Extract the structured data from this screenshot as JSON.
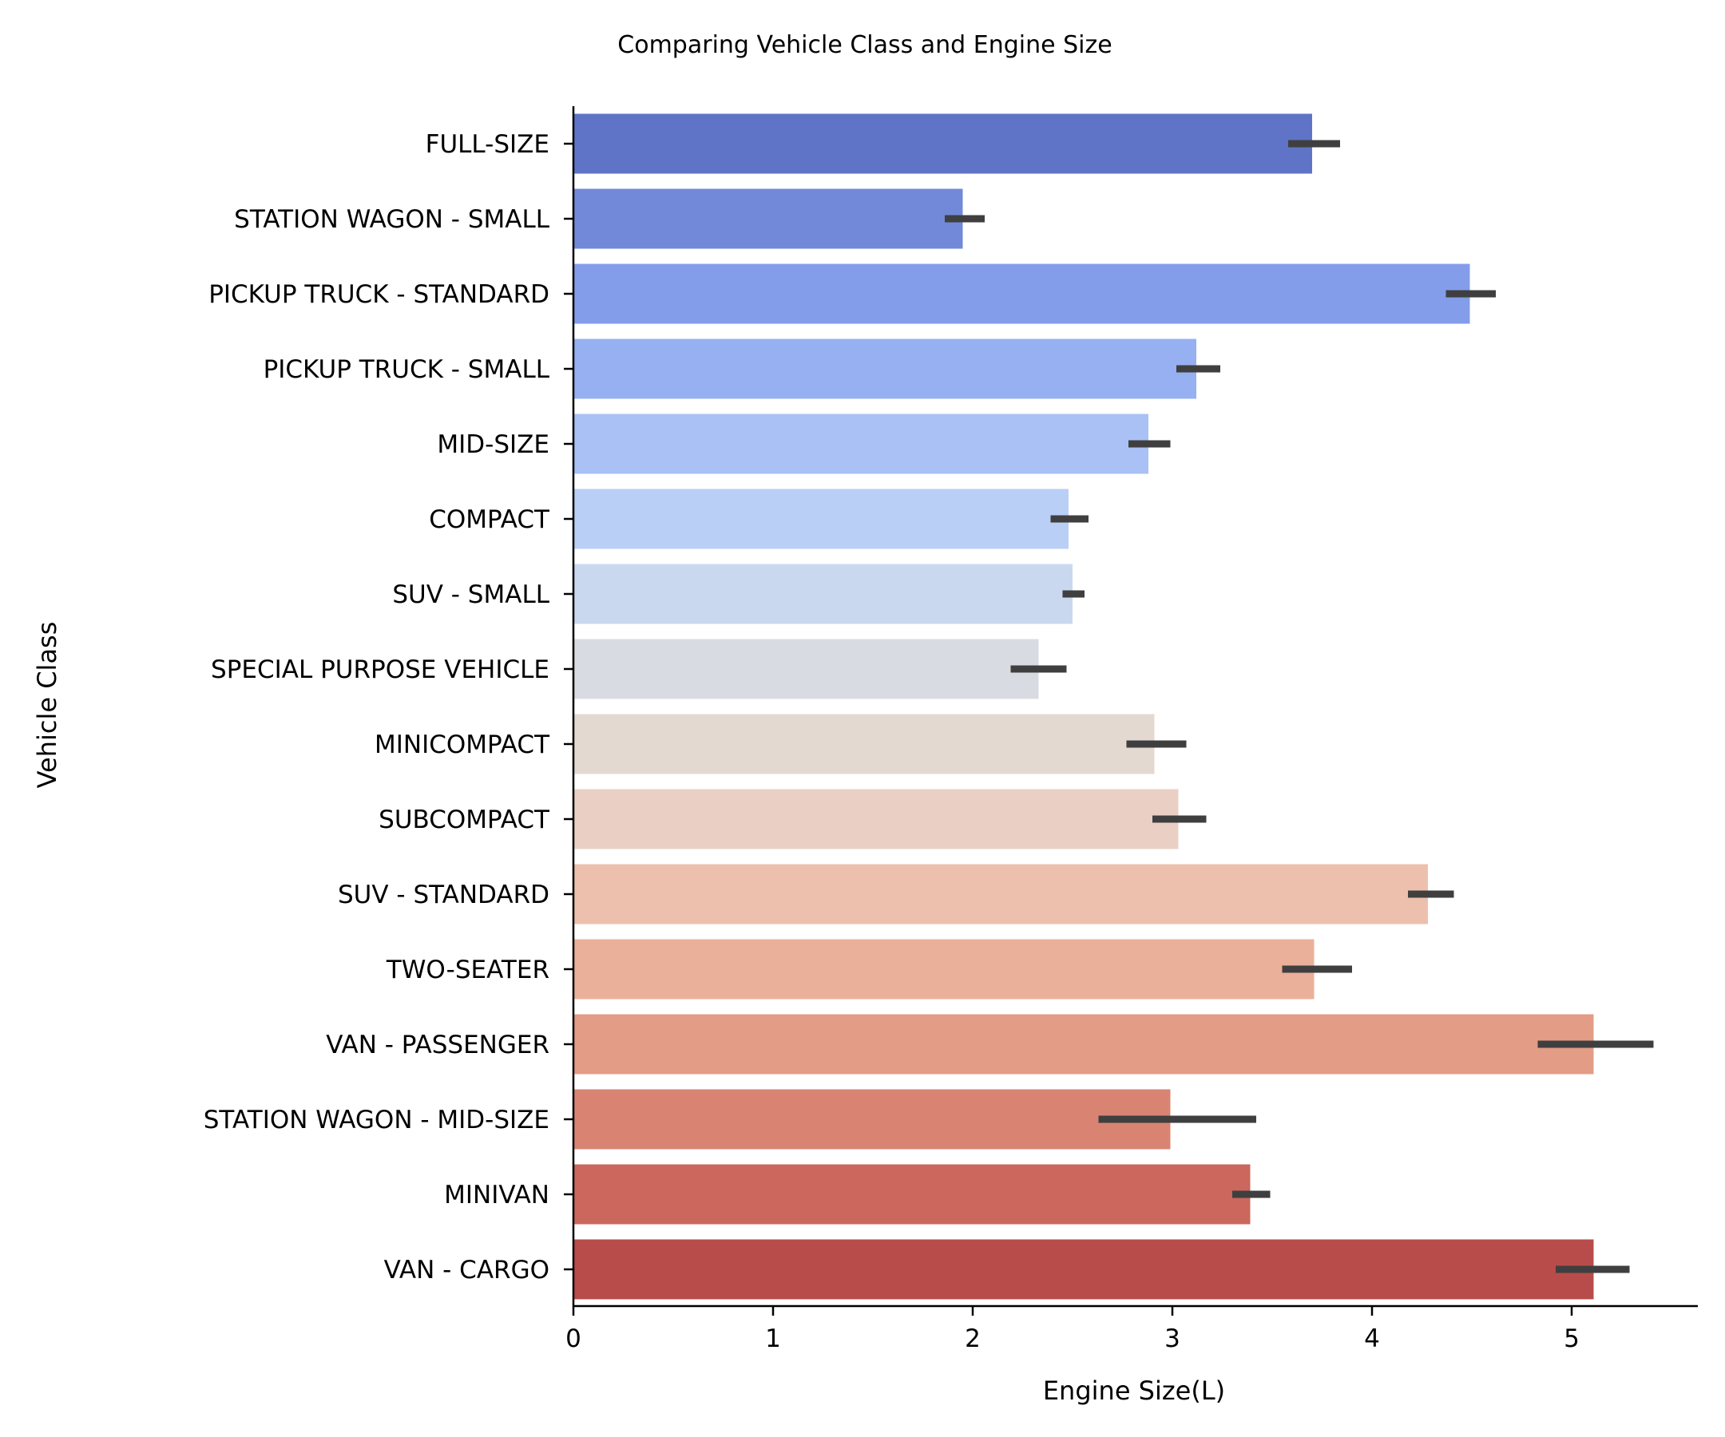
{
  "chart_data": {
    "type": "bar",
    "orientation": "horizontal",
    "title": "Comparing Vehicle Class and Engine Size",
    "xlabel": "Engine Size(L)",
    "ylabel": "Vehicle Class",
    "xlim": [
      0,
      5.65
    ],
    "xticks": [
      0,
      1,
      2,
      3,
      4,
      5
    ],
    "grid": false,
    "palette": "coolwarm",
    "categories": [
      "FULL-SIZE",
      "STATION WAGON - SMALL",
      "PICKUP TRUCK - STANDARD",
      "PICKUP TRUCK - SMALL",
      "MID-SIZE",
      "COMPACT",
      "SUV - SMALL",
      "SPECIAL PURPOSE VEHICLE",
      "MINICOMPACT",
      "SUBCOMPACT",
      "SUV - STANDARD",
      "TWO-SEATER",
      "VAN - PASSENGER",
      "STATION WAGON - MID-SIZE",
      "MINIVAN",
      "VAN - CARGO"
    ],
    "values": [
      3.7,
      1.95,
      4.49,
      3.12,
      2.88,
      2.48,
      2.5,
      2.33,
      2.91,
      3.03,
      4.28,
      3.71,
      5.11,
      2.99,
      3.39,
      5.11
    ],
    "ci": [
      [
        3.58,
        3.84
      ],
      [
        1.86,
        2.06
      ],
      [
        4.37,
        4.62
      ],
      [
        3.02,
        3.24
      ],
      [
        2.78,
        2.99
      ],
      [
        2.39,
        2.58
      ],
      [
        2.45,
        2.56
      ],
      [
        2.19,
        2.47
      ],
      [
        2.77,
        3.07
      ],
      [
        2.9,
        3.17
      ],
      [
        4.18,
        4.41
      ],
      [
        3.55,
        3.9
      ],
      [
        4.83,
        5.41
      ],
      [
        2.63,
        3.42
      ],
      [
        3.3,
        3.49
      ],
      [
        4.92,
        5.29
      ]
    ],
    "colors": [
      "#6074c7",
      "#7289d9",
      "#839deb",
      "#96b0f2",
      "#a9c1f5",
      "#bacff6",
      "#cad8ef",
      "#d8dce2",
      "#e4d9d1",
      "#ead0c4",
      "#edc0ad",
      "#ebb09a",
      "#e39c85",
      "#d98472",
      "#cb675c",
      "#b84c4a"
    ],
    "error_color": "#3f3f3f"
  }
}
